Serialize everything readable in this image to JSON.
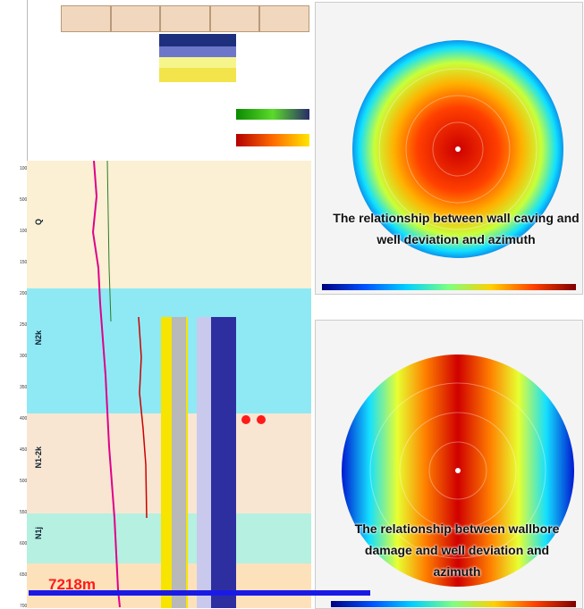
{
  "log": {
    "header_cells": [
      "",
      "",
      "",
      "",
      ""
    ],
    "depth_ticks": [
      "100",
      "500",
      "1000",
      "1500",
      "2000",
      "2500",
      "3000",
      "3500",
      "4000",
      "4500",
      "5000",
      "5500",
      "6000",
      "6500",
      "7000"
    ],
    "strata": [
      {
        "label": "Q",
        "color": "#fbf0d3"
      },
      {
        "label": "N2k",
        "color": "#8fe9f4"
      },
      {
        "label": "N1-2k",
        "color": "#f8e6d2"
      },
      {
        "label": "N1j",
        "color": "#b5f0e0"
      },
      {
        "label": "",
        "color": "#fde1bb"
      }
    ]
  },
  "scale": {
    "label": "7218m"
  },
  "polar_top": {
    "title_lines": [
      "",
      "",
      ""
    ],
    "caption": "The relationship between wall caving and well deviation and azimuth"
  },
  "polar_bottom": {
    "title_lines": [
      "",
      "",
      ""
    ],
    "caption": "The relationship between wallbore damage and well deviation and azimuth"
  }
}
